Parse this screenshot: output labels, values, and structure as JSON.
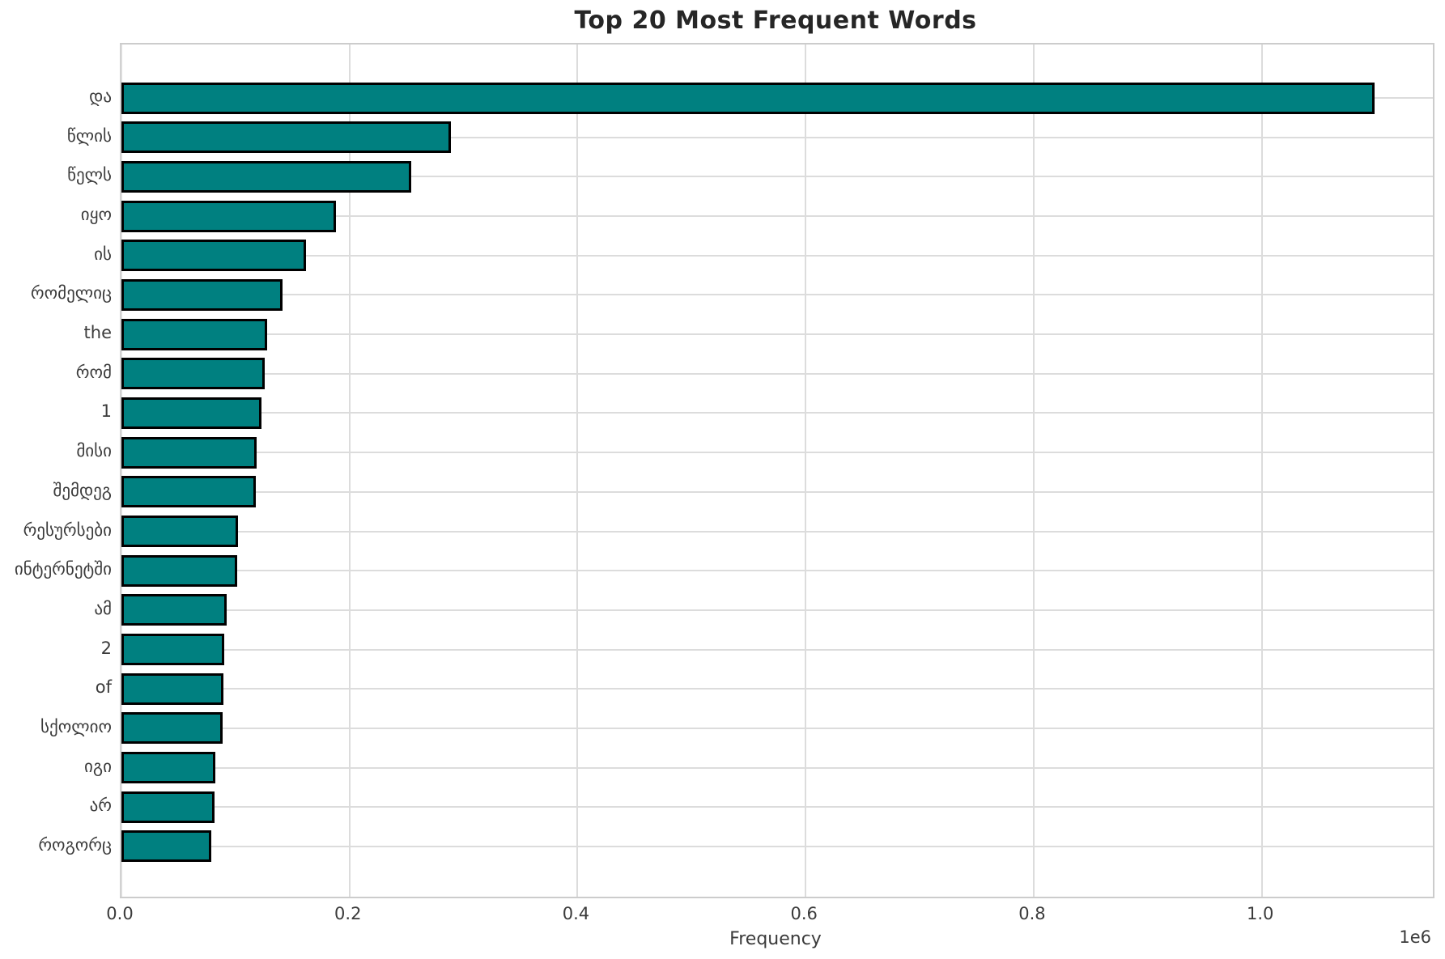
{
  "chart_data": {
    "type": "bar",
    "orientation": "horizontal",
    "title": "Top 20 Most Frequent Words",
    "xlabel": "Frequency",
    "ylabel": "",
    "offset_text": "1e6",
    "categories": [
      "და",
      "წლის",
      "წელს",
      "იყო",
      "ის",
      "რომელიც",
      "the",
      "რომ",
      "1",
      "მისი",
      "შემდეგ",
      "რესურსები",
      "ინტერნეტში",
      "ამ",
      "2",
      "of",
      "სქოლიო",
      "იგი",
      "არ",
      "როგორც"
    ],
    "values": [
      1099000,
      289000,
      254000,
      188000,
      162000,
      141500,
      128000,
      126000,
      122500,
      118800,
      118000,
      102300,
      101600,
      92600,
      90000,
      89300,
      89000,
      82200,
      81800,
      79000
    ],
    "xlim": [
      0,
      1150000
    ],
    "xticks": {
      "values": [
        0,
        200000,
        400000,
        600000,
        800000,
        1000000
      ],
      "labels": [
        "0.0",
        "0.2",
        "0.4",
        "0.6",
        "0.8",
        "1.0"
      ]
    },
    "grid": true,
    "legend_position": "none",
    "colors": {
      "bar_fill": "#008080",
      "bar_edge": "#000000",
      "grid": "#dcdcdc",
      "spine": "#cccccc",
      "title_text": "#262626",
      "tick_text": "#3b3b3b"
    }
  }
}
